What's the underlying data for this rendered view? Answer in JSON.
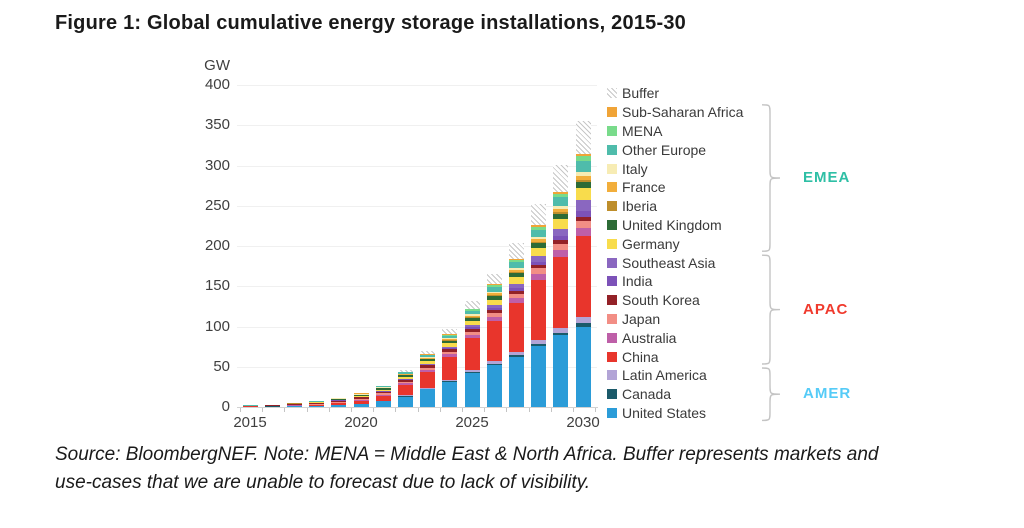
{
  "title": "Figure 1: Global cumulative energy storage installations, 2015-30",
  "source_note": {
    "line1": "Source: BloombergNEF. Note: MENA = Middle East & North Africa. Buffer represents markets and",
    "line2": "use-cases that we are unable to forecast due to lack of visibility."
  },
  "chart_data": {
    "type": "bar",
    "stacked": true,
    "title": "Figure 1: Global cumulative energy storage installations, 2015-30",
    "ylabel": "GW",
    "ylim": [
      0,
      400
    ],
    "yticks": [
      0,
      50,
      100,
      150,
      200,
      250,
      300,
      350,
      400
    ],
    "x": [
      2015,
      2016,
      2017,
      2018,
      2019,
      2020,
      2021,
      2022,
      2023,
      2024,
      2025,
      2026,
      2027,
      2028,
      2029,
      2030
    ],
    "xticks_labeled": [
      2015,
      2020,
      2025,
      2030
    ],
    "grid": "horizontal",
    "legend_position": "right",
    "series_note": "stack order bottom to top; legend displays reverse order (Buffer at top)",
    "series": [
      {
        "name": "United States",
        "color": "#2B9CD8",
        "values": [
          0.4,
          0.6,
          1.0,
          1.3,
          2.0,
          3.5,
          7.0,
          13.0,
          22.0,
          31.0,
          42.0,
          52.0,
          62.0,
          76.0,
          89.0,
          100.0
        ]
      },
      {
        "name": "Canada",
        "color": "#1B5A6A",
        "values": [
          0.05,
          0.1,
          0.1,
          0.1,
          0.2,
          0.3,
          0.4,
          0.6,
          0.8,
          1.0,
          1.4,
          1.8,
          2.2,
          2.7,
          3.2,
          4.0
        ]
      },
      {
        "name": "Latin America",
        "color": "#B2A4D6",
        "values": [
          0.05,
          0.1,
          0.1,
          0.2,
          0.3,
          0.4,
          0.5,
          0.8,
          1.2,
          1.6,
          2.2,
          2.9,
          3.7,
          4.7,
          5.8,
          8.0
        ]
      },
      {
        "name": "China",
        "color": "#E8352C",
        "values": [
          0.2,
          0.3,
          0.5,
          1.0,
          2.0,
          3.5,
          6.0,
          13.0,
          20.0,
          29.0,
          40.0,
          50.0,
          61.0,
          75.0,
          89.0,
          100.0
        ]
      },
      {
        "name": "Australia",
        "color": "#BE5FA8",
        "values": [
          0.1,
          0.15,
          0.3,
          0.5,
          0.8,
          1.0,
          1.5,
          2.0,
          2.5,
          3.2,
          4.2,
          5.2,
          6.2,
          7.3,
          8.4,
          10.0
        ]
      },
      {
        "name": "Japan",
        "color": "#F28E85",
        "values": [
          0.3,
          0.45,
          0.7,
          0.9,
          1.2,
          1.5,
          1.8,
          2.2,
          2.6,
          3.0,
          3.8,
          4.6,
          5.4,
          6.4,
          7.4,
          9.0
        ]
      },
      {
        "name": "South Korea",
        "color": "#932127",
        "values": [
          0.2,
          0.3,
          0.6,
          1.0,
          1.6,
          1.8,
          2.0,
          2.3,
          2.6,
          3.0,
          3.4,
          3.8,
          4.1,
          4.4,
          4.7,
          5.0
        ]
      },
      {
        "name": "India",
        "color": "#7C52B8",
        "values": [
          0.05,
          0.1,
          0.1,
          0.1,
          0.2,
          0.3,
          0.4,
          0.6,
          0.9,
          1.3,
          1.9,
          2.5,
          3.2,
          4.2,
          5.3,
          7.0
        ]
      },
      {
        "name": "Southeast Asia",
        "color": "#8A67C0",
        "values": [
          0.05,
          0.05,
          0.1,
          0.1,
          0.2,
          0.3,
          0.4,
          0.7,
          1.2,
          1.8,
          2.6,
          3.6,
          4.8,
          6.4,
          8.6,
          14.0
        ]
      },
      {
        "name": "Germany",
        "color": "#F8DC4C",
        "values": [
          0.2,
          0.3,
          0.5,
          0.6,
          0.8,
          1.2,
          1.8,
          2.5,
          3.2,
          4.2,
          5.6,
          7.0,
          8.6,
          10.4,
          12.4,
          15.0
        ]
      },
      {
        "name": "United Kingdom",
        "color": "#2D6B36",
        "values": [
          0.1,
          0.15,
          0.4,
          0.6,
          0.9,
          1.2,
          1.6,
          2.2,
          2.8,
          3.4,
          4.1,
          4.8,
          5.4,
          6.0,
          6.6,
          7.0
        ]
      },
      {
        "name": "Iberia",
        "color": "#BE8E2B",
        "values": [
          0.05,
          0.05,
          0.1,
          0.1,
          0.1,
          0.2,
          0.3,
          0.4,
          0.5,
          0.7,
          0.9,
          1.2,
          1.5,
          1.9,
          2.3,
          3.0
        ]
      },
      {
        "name": "France",
        "color": "#F2AE3B",
        "values": [
          0.05,
          0.1,
          0.1,
          0.2,
          0.2,
          0.3,
          0.4,
          0.6,
          0.8,
          1.1,
          1.5,
          1.9,
          2.4,
          3.0,
          3.7,
          5.0
        ]
      },
      {
        "name": "Italy",
        "color": "#F7ECB4",
        "values": [
          0.1,
          0.1,
          0.1,
          0.1,
          0.2,
          0.3,
          0.4,
          0.6,
          0.8,
          1.1,
          1.5,
          1.9,
          2.4,
          3.0,
          3.7,
          5.0
        ]
      },
      {
        "name": "Other Europe",
        "color": "#4FBCAB",
        "values": [
          0.1,
          0.15,
          0.3,
          0.4,
          0.6,
          0.8,
          1.2,
          1.8,
          2.4,
          3.2,
          4.4,
          5.6,
          6.9,
          8.6,
          10.4,
          14.0
        ]
      },
      {
        "name": "MENA",
        "color": "#79DB8B",
        "values": [
          0,
          0,
          0,
          0.1,
          0.2,
          0.3,
          0.4,
          0.6,
          0.8,
          1.2,
          1.8,
          2.4,
          3.0,
          3.8,
          4.7,
          6.0
        ]
      },
      {
        "name": "Sub-Saharan Africa",
        "color": "#F0A437",
        "values": [
          0,
          0,
          0,
          0.1,
          0.1,
          0.2,
          0.3,
          0.4,
          0.5,
          0.8,
          1.1,
          1.4,
          1.7,
          2.1,
          2.6,
          3.0
        ]
      },
      {
        "name": "Buffer",
        "color": "hatch",
        "values": [
          0,
          0,
          0,
          0,
          0,
          0,
          0,
          2.0,
          4.0,
          6.0,
          9.0,
          13.0,
          19.0,
          26.0,
          33.0,
          41.0
        ]
      }
    ],
    "groups": [
      {
        "label": "EMEA",
        "color": "#2EBFA5",
        "members": [
          "Sub-Saharan Africa",
          "MENA",
          "Other Europe",
          "Italy",
          "France",
          "Iberia",
          "United Kingdom",
          "Germany"
        ]
      },
      {
        "label": "APAC",
        "color": "#F03A2D",
        "members": [
          "Southeast Asia",
          "India",
          "South Korea",
          "Japan",
          "Australia",
          "China"
        ]
      },
      {
        "label": "AMER",
        "color": "#55CBF7",
        "members": [
          "Latin America",
          "Canada",
          "United States"
        ]
      }
    ]
  }
}
